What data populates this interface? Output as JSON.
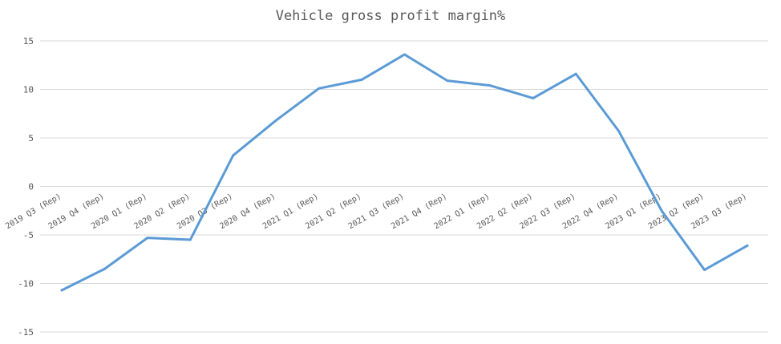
{
  "chart_data": {
    "type": "line",
    "title": "Vehicle gross profit margin%",
    "xlabel": "",
    "ylabel": "",
    "ylim": [
      -15,
      15
    ],
    "yticks": [
      15,
      10,
      5,
      0,
      -5,
      -10,
      -15
    ],
    "grid": true,
    "legend": "none",
    "categories": [
      "2019 Q3 (Rep)",
      "2019 Q4 (Rep)",
      "2020 Q1 (Rep)",
      "2020 Q2 (Rep)",
      "2020 Q3 (Rep)",
      "2020 Q4 (Rep)",
      "2021 Q1 (Rep)",
      "2021 Q2 (Rep)",
      "2021 Q3 (Rep)",
      "2021 Q4 (Rep)",
      "2022 Q1 (Rep)",
      "2022 Q2 (Rep)",
      "2022 Q3 (Rep)",
      "2022 Q4 (Rep)",
      "2023 Q1 (Rep)",
      "2023 Q2 (Rep)",
      "2023 Q3 (Rep)"
    ],
    "series": [
      {
        "color": "#5b9bd5",
        "values": [
          -10.7,
          -8.5,
          -5.3,
          -5.5,
          3.2,
          6.8,
          10.1,
          11.0,
          13.6,
          10.9,
          10.4,
          9.1,
          11.6,
          5.7,
          -2.5,
          -8.6,
          -6.1
        ]
      }
    ]
  }
}
